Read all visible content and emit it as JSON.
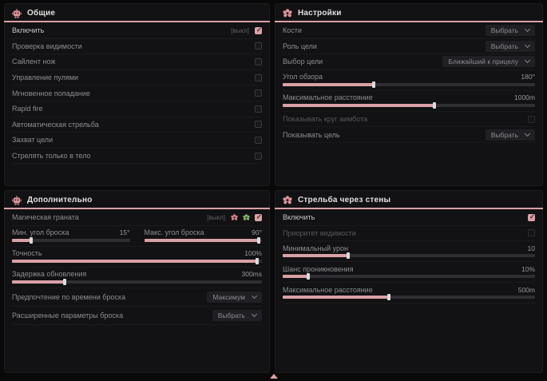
{
  "theme": {
    "accent": "#d9a1a7",
    "panel_bg": "#121214",
    "page_bg": "#09090a",
    "checked_checkbox": "#d9a1a7"
  },
  "icons": {
    "general_header": "robot-icon",
    "settings_header": "flower-icon",
    "additional_header": "robot-icon",
    "walls_header": "flower-icon",
    "grenade_state_off": "red-flower-icon",
    "grenade_state_on": "green-flower-icon",
    "footer": "scroll-up-triangle-icon"
  },
  "panels": {
    "general": {
      "title": "Общие",
      "rows": [
        {
          "label": "Включить",
          "tag": "[выкл]",
          "checked": true
        },
        {
          "label": "Проверка видимости",
          "checked": false
        },
        {
          "label": "Сайлент нож",
          "checked": false
        },
        {
          "label": "Управление пулями",
          "checked": false
        },
        {
          "label": "Мгновенное попадание",
          "checked": false
        },
        {
          "label": "Rapid fire",
          "checked": false
        },
        {
          "label": "Автоматическая стрельба",
          "checked": false
        },
        {
          "label": "Захват цели",
          "checked": false
        },
        {
          "label": "Стрелять только в тело",
          "checked": false
        }
      ]
    },
    "settings": {
      "title": "Настройки",
      "rows": [
        {
          "label": "Кости",
          "value": "Выбрать"
        },
        {
          "label": "Роль цели",
          "value": "Выбрать"
        },
        {
          "label": "Выбор цели",
          "value": "Ближайший к прицелу"
        },
        {
          "label": "Угол обзора",
          "value": "180°",
          "fill": 36
        },
        {
          "label": "Максимальное расстояние",
          "value": "1000m",
          "fill": 60
        },
        {
          "label": "Показывать круг аимбота",
          "checked": false
        },
        {
          "label": "Показывать цель",
          "value": "Выбрать"
        }
      ]
    },
    "additional": {
      "title": "Дополнительно",
      "rows": [
        {
          "label": "Магическая граната",
          "tag": "[выкл]",
          "checked": true
        },
        {
          "label": "Мин. угол броска",
          "value": "15°",
          "fill": 16
        },
        {
          "label": "Макс. угол броска",
          "value": "90°",
          "fill": 97
        },
        {
          "label": "Точность",
          "value": "100%",
          "fill": 98
        },
        {
          "label": "Задержка обновления",
          "value": "300ms",
          "fill": 21
        },
        {
          "label": "Предпочтение по времени броска",
          "value": "Максимум"
        },
        {
          "label": "Расширенные параметры броска",
          "value": "Выбрать"
        }
      ]
    },
    "walls": {
      "title": "Стрельба через стены",
      "rows": [
        {
          "label": "Включить",
          "checked": true
        },
        {
          "label": "Приоритет видимости",
          "checked": false
        },
        {
          "label": "Минимальный урон",
          "value": "10",
          "fill": 26
        },
        {
          "label": "Шанс проникновения",
          "value": "10%",
          "fill": 10
        },
        {
          "label": "Максимальное расстояние",
          "value": "500m",
          "fill": 42
        }
      ]
    }
  }
}
